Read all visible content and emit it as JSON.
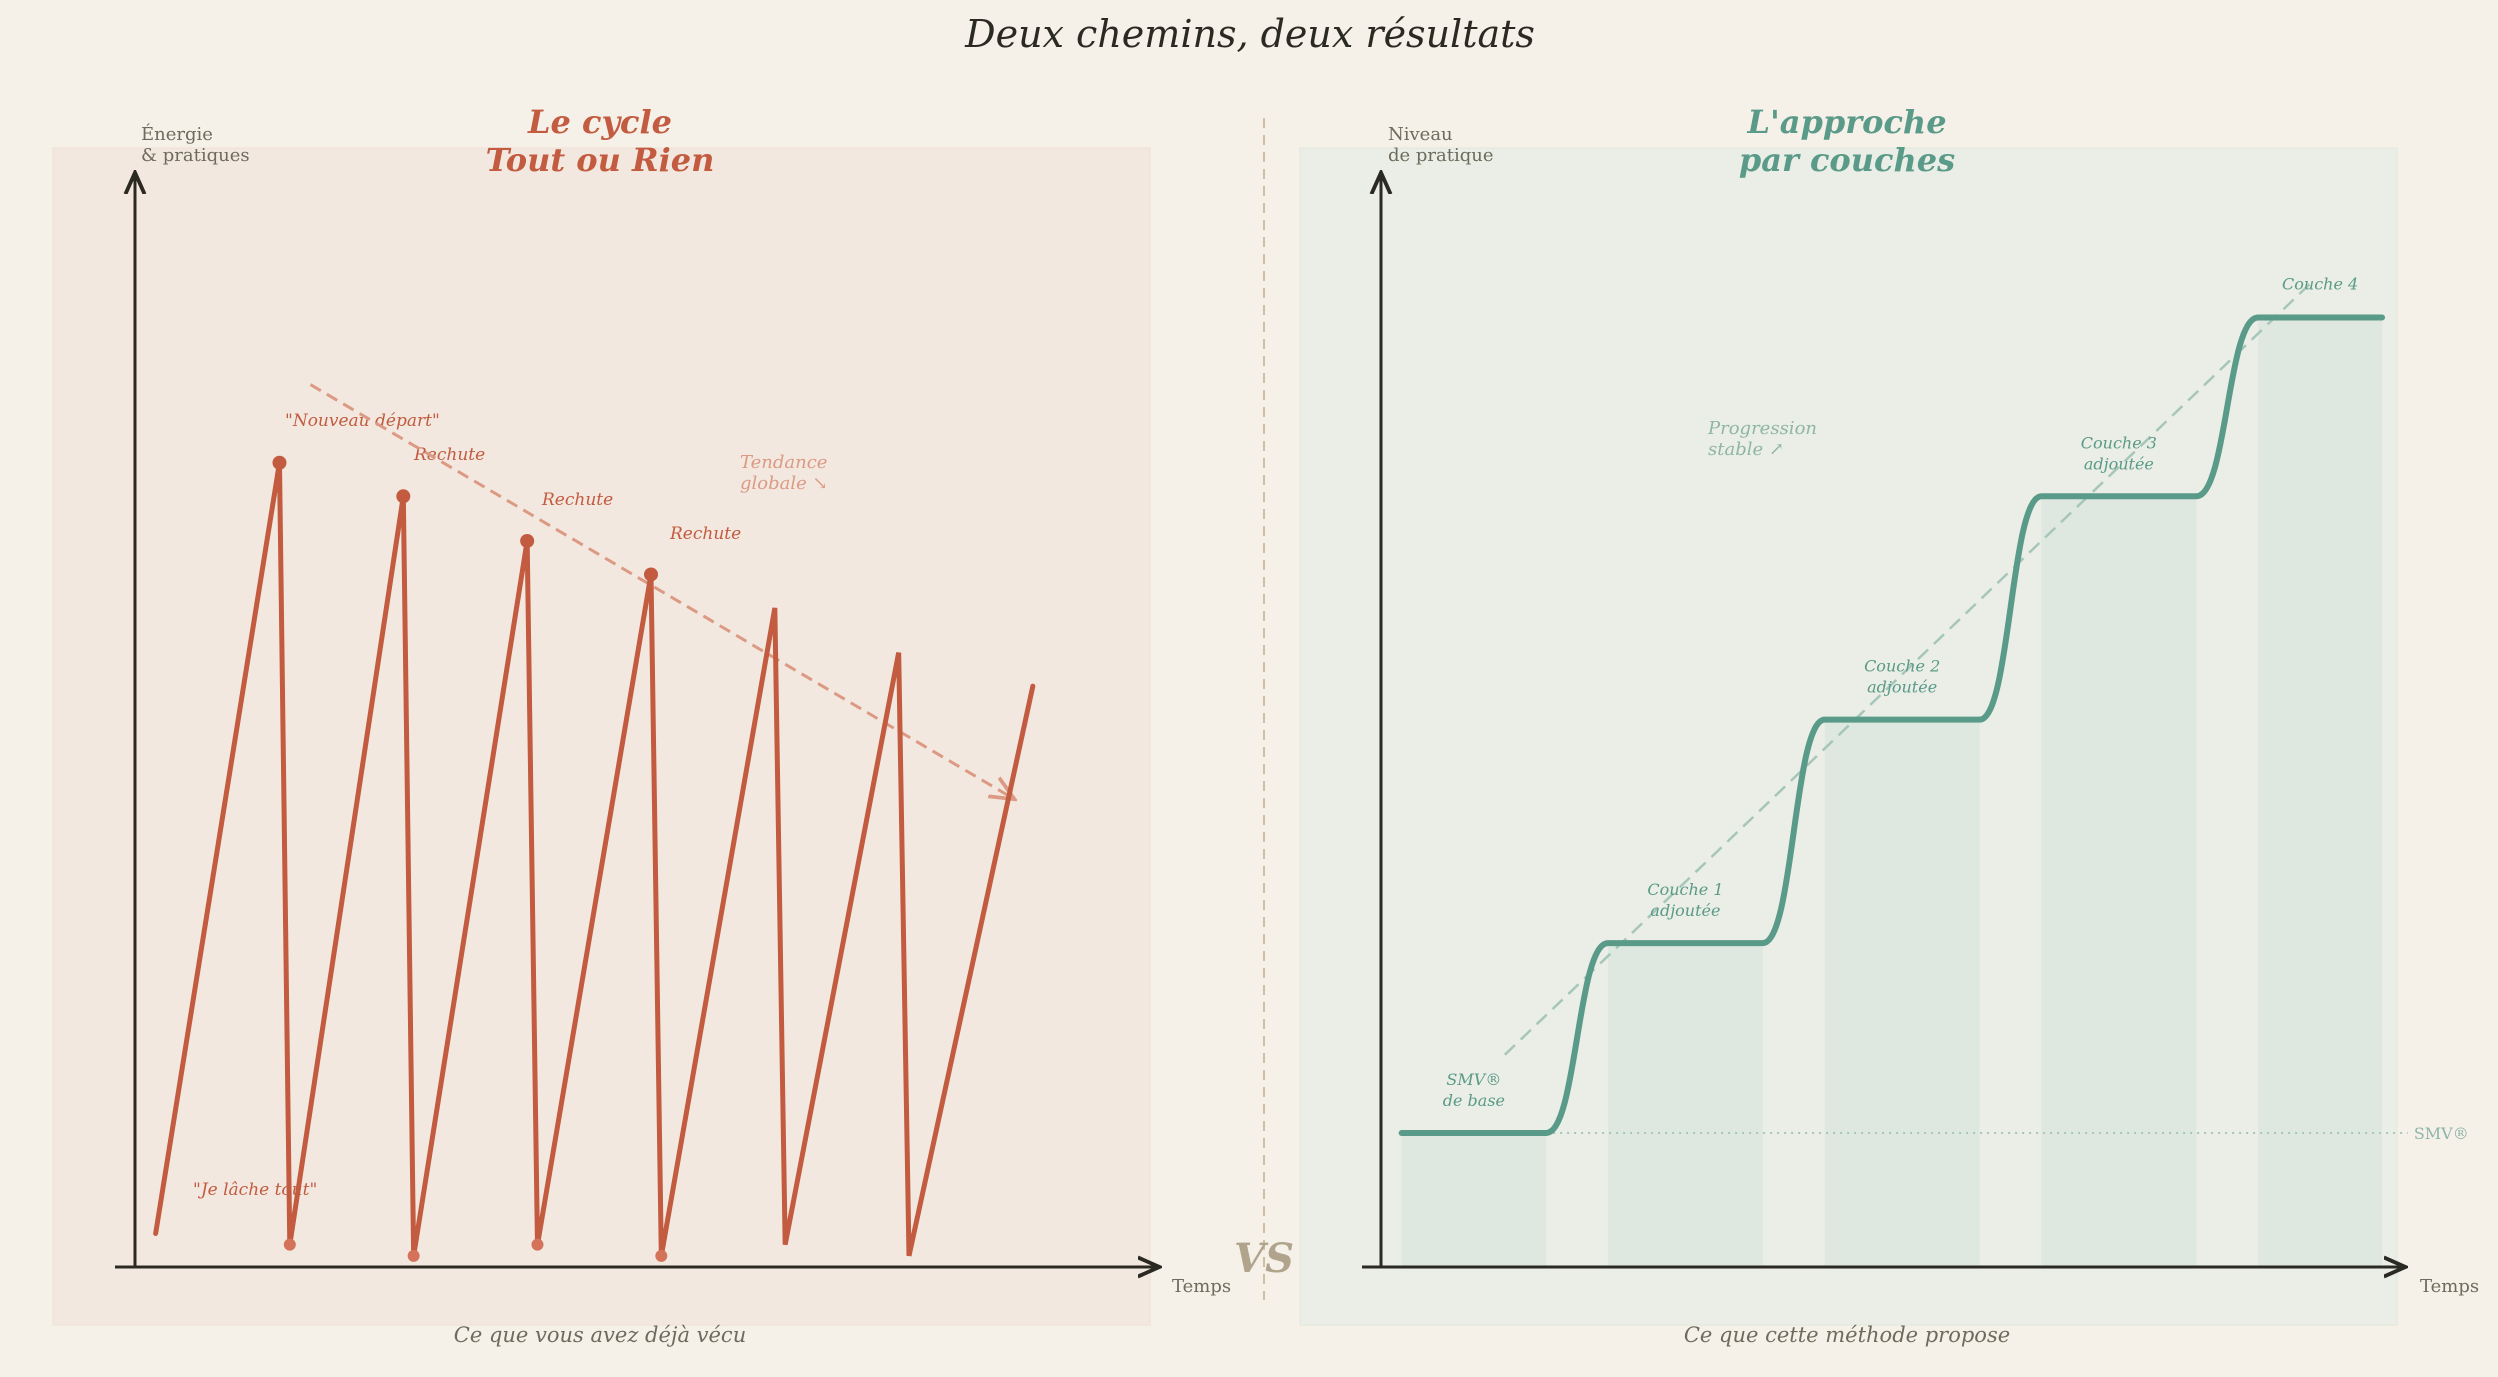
{
  "title": "Deux chemins, deux résultats",
  "vs_label": "VS",
  "colors": {
    "background": "#f5f0e8",
    "left_panel": "#f3e8df",
    "right_panel": "#eaeee6",
    "terracotta": "#c25b3f",
    "terracotta_light": "#dc9a84",
    "teal": "#5a9a88",
    "teal_light": "#a7c6bb",
    "axis": "#2b2a22",
    "muted_text": "#6e6b5c",
    "divider": "#cdbf9f"
  },
  "left": {
    "title_line1": "Le cycle",
    "title_line2": "Tout ou Rien",
    "y_axis_line1": "Énergie",
    "y_axis_line2": "& pratiques",
    "x_axis": "Temps",
    "caption": "Ce que vous avez déjà vécu",
    "trend_label_line1": "Tendance",
    "trend_label_line2": "globale ↘",
    "annotations": {
      "start": "\"Nouveau départ\"",
      "quit": "\"Je lâche tout\"",
      "relapses": [
        "Rechute",
        "Rechute",
        "Rechute"
      ]
    },
    "chart_data": {
      "type": "line",
      "title": "Le cycle Tout ou Rien",
      "xlabel": "Temps",
      "ylabel": "Énergie & pratiques",
      "xlim": [
        0,
        100
      ],
      "ylim": [
        0,
        100
      ],
      "series": [
        {
          "name": "Énergie & pratiques",
          "points": [
            [
              2,
              3
            ],
            [
              14,
              72
            ],
            [
              15,
              2
            ],
            [
              26,
              69
            ],
            [
              27,
              1
            ],
            [
              38,
              65
            ],
            [
              39,
              2
            ],
            [
              50,
              62
            ],
            [
              51,
              1
            ],
            [
              62,
              59
            ],
            [
              63,
              2
            ],
            [
              74,
              55
            ],
            [
              75,
              1
            ],
            [
              87,
              52
            ]
          ]
        }
      ],
      "peak_markers": [
        [
          14,
          72
        ],
        [
          26,
          69
        ],
        [
          38,
          65
        ],
        [
          50,
          62
        ]
      ],
      "trough_markers": [
        [
          15,
          2
        ],
        [
          27,
          1
        ],
        [
          39,
          2
        ],
        [
          51,
          1
        ]
      ],
      "trend_line": [
        [
          17,
          79
        ],
        [
          85,
          42
        ]
      ]
    }
  },
  "right": {
    "title_line1": "L'approche",
    "title_line2": "par couches",
    "y_axis_line1": "Niveau",
    "y_axis_line2": "de pratique",
    "x_axis": "Temps",
    "caption": "Ce que cette méthode propose",
    "baseline_label": "SMV®",
    "progression_line1": "Progression",
    "progression_line2": "stable ↗",
    "step_labels": [
      {
        "line1": "SMV®",
        "line2": "de base"
      },
      {
        "line1": "Couche 1",
        "line2": "adjoutée"
      },
      {
        "line1": "Couche 2",
        "line2": "adjoutée"
      },
      {
        "line1": "Couche 3",
        "line2": "adjoutée"
      },
      {
        "line1": "Couche 4",
        "line2": ""
      }
    ],
    "chart_data": {
      "type": "line",
      "title": "L'approche par couches",
      "xlabel": "Temps",
      "ylabel": "Niveau de pratique",
      "xlim": [
        0,
        100
      ],
      "ylim": [
        0,
        100
      ],
      "series": [
        {
          "name": "Niveau de pratique",
          "steps": [
            {
              "x0": 2,
              "x1": 16,
              "level": 12
            },
            {
              "x0": 22,
              "x1": 37,
              "level": 29
            },
            {
              "x0": 43,
              "x1": 58,
              "level": 49
            },
            {
              "x0": 64,
              "x1": 79,
              "level": 69
            },
            {
              "x0": 85,
              "x1": 97,
              "level": 85
            }
          ]
        }
      ],
      "baseline": 12,
      "progression_line": [
        [
          12,
          19
        ],
        [
          90,
          88
        ]
      ]
    }
  }
}
